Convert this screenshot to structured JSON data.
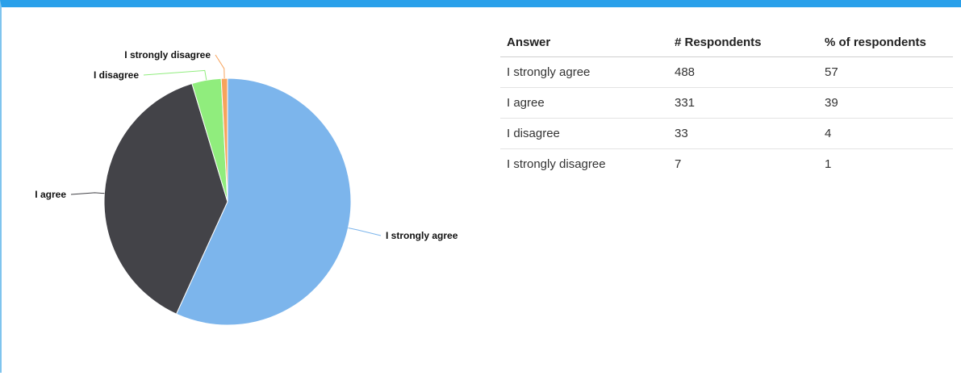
{
  "chart_data": {
    "type": "pie",
    "slices": [
      {
        "label": "I strongly agree",
        "value": 488,
        "color": "#7cb5ec"
      },
      {
        "label": "I agree",
        "value": 331,
        "color": "#434348"
      },
      {
        "label": "I disagree",
        "value": 33,
        "color": "#90ed7d"
      },
      {
        "label": "I strongly disagree",
        "value": 7,
        "color": "#f7a35c"
      }
    ]
  },
  "table": {
    "headers": [
      "Answer",
      "# Respondents",
      "% of respondents"
    ],
    "rows": [
      {
        "answer": "I strongly agree",
        "respondents": "488",
        "percent": "57"
      },
      {
        "answer": "I agree",
        "respondents": "331",
        "percent": "39"
      },
      {
        "answer": "I disagree",
        "respondents": "33",
        "percent": "4"
      },
      {
        "answer": "I strongly disagree",
        "respondents": "7",
        "percent": "1"
      }
    ]
  }
}
